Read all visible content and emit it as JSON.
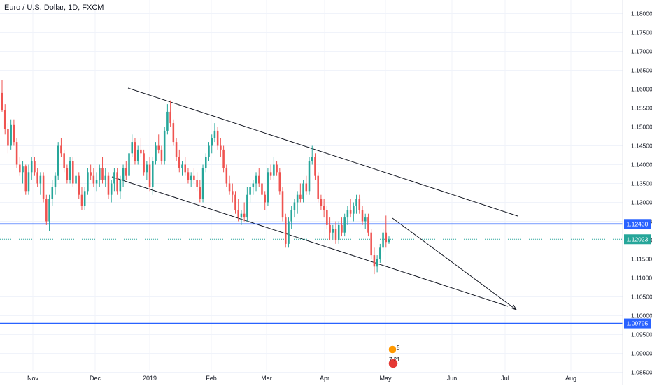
{
  "chart_data": {
    "type": "candlestick",
    "title": "Euro / U.S. Dollar, 1D, FXCM",
    "x_labels": [
      "Nov",
      "Dec",
      "2019",
      "Feb",
      "Mar",
      "Apr",
      "May",
      "Jun",
      "Jul",
      "Aug"
    ],
    "y_ticks": [
      "1.18000",
      "1.17500",
      "1.17000",
      "1.16500",
      "1.16000",
      "1.15500",
      "1.15000",
      "1.14500",
      "1.14000",
      "1.13500",
      "1.13000",
      "1.12500",
      "1.12000",
      "1.11500",
      "1.11000",
      "1.10500",
      "1.10000",
      "1.09500",
      "1.09000",
      "1.08500"
    ],
    "ylim": [
      1.0825,
      1.1825
    ],
    "price_labels": [
      {
        "value": 1.1243,
        "label": "1.12430",
        "color": "#2962ff"
      },
      {
        "value": 1.12023,
        "label": "1.12023",
        "color": "#26a69a"
      },
      {
        "value": 1.09795,
        "label": "1.09795",
        "color": "#2962ff"
      }
    ],
    "candles": [
      [
        1.159,
        1.1625,
        1.154,
        1.1545
      ],
      [
        1.1545,
        1.156,
        1.148,
        1.1495
      ],
      [
        1.1495,
        1.151,
        1.143,
        1.145
      ],
      [
        1.145,
        1.152,
        1.144,
        1.1505
      ],
      [
        1.1505,
        1.152,
        1.145,
        1.146
      ],
      [
        1.146,
        1.147,
        1.139,
        1.14
      ],
      [
        1.14,
        1.142,
        1.137,
        1.138
      ],
      [
        1.138,
        1.141,
        1.135,
        1.1395
      ],
      [
        1.1395,
        1.14,
        1.132,
        1.133
      ],
      [
        1.133,
        1.14,
        1.132,
        1.138
      ],
      [
        1.138,
        1.142,
        1.136,
        1.141
      ],
      [
        1.141,
        1.142,
        1.137,
        1.138
      ],
      [
        1.138,
        1.139,
        1.134,
        1.135
      ],
      [
        1.135,
        1.138,
        1.132,
        1.137
      ],
      [
        1.137,
        1.138,
        1.13,
        1.131
      ],
      [
        1.131,
        1.132,
        1.124,
        1.125
      ],
      [
        1.125,
        1.132,
        1.1225,
        1.131
      ],
      [
        1.131,
        1.136,
        1.129,
        1.134
      ],
      [
        1.134,
        1.138,
        1.132,
        1.137
      ],
      [
        1.137,
        1.146,
        1.136,
        1.145
      ],
      [
        1.145,
        1.147,
        1.142,
        1.143
      ],
      [
        1.143,
        1.144,
        1.138,
        1.139
      ],
      [
        1.139,
        1.14,
        1.135,
        1.136
      ],
      [
        1.136,
        1.142,
        1.135,
        1.141
      ],
      [
        1.141,
        1.142,
        1.134,
        1.135
      ],
      [
        1.135,
        1.138,
        1.133,
        1.137
      ],
      [
        1.137,
        1.138,
        1.131,
        1.132
      ],
      [
        1.132,
        1.134,
        1.128,
        1.129
      ],
      [
        1.129,
        1.134,
        1.128,
        1.133
      ],
      [
        1.133,
        1.139,
        1.132,
        1.138
      ],
      [
        1.138,
        1.14,
        1.136,
        1.137
      ],
      [
        1.137,
        1.139,
        1.134,
        1.135
      ],
      [
        1.135,
        1.138,
        1.133,
        1.136
      ],
      [
        1.136,
        1.14,
        1.134,
        1.139
      ],
      [
        1.139,
        1.142,
        1.135,
        1.136
      ],
      [
        1.136,
        1.139,
        1.134,
        1.137
      ],
      [
        1.137,
        1.138,
        1.131,
        1.132
      ],
      [
        1.132,
        1.136,
        1.13,
        1.135
      ],
      [
        1.135,
        1.139,
        1.133,
        1.138
      ],
      [
        1.138,
        1.139,
        1.132,
        1.133
      ],
      [
        1.133,
        1.137,
        1.131,
        1.136
      ],
      [
        1.136,
        1.14,
        1.134,
        1.139
      ],
      [
        1.139,
        1.141,
        1.136,
        1.137
      ],
      [
        1.137,
        1.144,
        1.136,
        1.143
      ],
      [
        1.143,
        1.148,
        1.142,
        1.146
      ],
      [
        1.146,
        1.147,
        1.14,
        1.141
      ],
      [
        1.141,
        1.145,
        1.14,
        1.144
      ],
      [
        1.144,
        1.147,
        1.142,
        1.143
      ],
      [
        1.143,
        1.144,
        1.137,
        1.138
      ],
      [
        1.138,
        1.141,
        1.136,
        1.14
      ],
      [
        1.14,
        1.142,
        1.133,
        1.134
      ],
      [
        1.134,
        1.142,
        1.132,
        1.141
      ],
      [
        1.141,
        1.146,
        1.14,
        1.145
      ],
      [
        1.145,
        1.148,
        1.143,
        1.144
      ],
      [
        1.144,
        1.145,
        1.14,
        1.141
      ],
      [
        1.141,
        1.15,
        1.14,
        1.149
      ],
      [
        1.149,
        1.156,
        1.148,
        1.154
      ],
      [
        1.154,
        1.157,
        1.15,
        1.151
      ],
      [
        1.151,
        1.152,
        1.145,
        1.146
      ],
      [
        1.146,
        1.147,
        1.141,
        1.142
      ],
      [
        1.142,
        1.144,
        1.138,
        1.139
      ],
      [
        1.139,
        1.141,
        1.137,
        1.14
      ],
      [
        1.14,
        1.142,
        1.137,
        1.138
      ],
      [
        1.138,
        1.139,
        1.135,
        1.136
      ],
      [
        1.136,
        1.138,
        1.134,
        1.137
      ],
      [
        1.137,
        1.139,
        1.135,
        1.136
      ],
      [
        1.136,
        1.138,
        1.133,
        1.134
      ],
      [
        1.134,
        1.136,
        1.13,
        1.131
      ],
      [
        1.131,
        1.14,
        1.13,
        1.139
      ],
      [
        1.139,
        1.143,
        1.138,
        1.142
      ],
      [
        1.142,
        1.146,
        1.141,
        1.145
      ],
      [
        1.145,
        1.148,
        1.143,
        1.147
      ],
      [
        1.147,
        1.151,
        1.146,
        1.149
      ],
      [
        1.149,
        1.15,
        1.144,
        1.145
      ],
      [
        1.145,
        1.147,
        1.142,
        1.144
      ],
      [
        1.144,
        1.145,
        1.138,
        1.139
      ],
      [
        1.139,
        1.14,
        1.134,
        1.135
      ],
      [
        1.135,
        1.137,
        1.132,
        1.133
      ],
      [
        1.133,
        1.135,
        1.13,
        1.132
      ],
      [
        1.132,
        1.133,
        1.127,
        1.128
      ],
      [
        1.128,
        1.131,
        1.125,
        1.126
      ],
      [
        1.126,
        1.128,
        1.124,
        1.127
      ],
      [
        1.127,
        1.13,
        1.125,
        1.126
      ],
      [
        1.126,
        1.134,
        1.125,
        1.132
      ],
      [
        1.132,
        1.135,
        1.13,
        1.134
      ],
      [
        1.134,
        1.136,
        1.132,
        1.135
      ],
      [
        1.135,
        1.138,
        1.133,
        1.137
      ],
      [
        1.137,
        1.139,
        1.134,
        1.135
      ],
      [
        1.135,
        1.136,
        1.131,
        1.132
      ],
      [
        1.132,
        1.133,
        1.128,
        1.13
      ],
      [
        1.13,
        1.139,
        1.129,
        1.138
      ],
      [
        1.138,
        1.14,
        1.136,
        1.137
      ],
      [
        1.137,
        1.142,
        1.136,
        1.14
      ],
      [
        1.14,
        1.141,
        1.137,
        1.138
      ],
      [
        1.138,
        1.139,
        1.132,
        1.133
      ],
      [
        1.133,
        1.134,
        1.125,
        1.126
      ],
      [
        1.126,
        1.127,
        1.118,
        1.119
      ],
      [
        1.119,
        1.126,
        1.118,
        1.125
      ],
      [
        1.125,
        1.129,
        1.123,
        1.128
      ],
      [
        1.128,
        1.131,
        1.126,
        1.13
      ],
      [
        1.13,
        1.133,
        1.127,
        1.132
      ],
      [
        1.132,
        1.135,
        1.13,
        1.131
      ],
      [
        1.131,
        1.136,
        1.13,
        1.135
      ],
      [
        1.135,
        1.137,
        1.132,
        1.133
      ],
      [
        1.133,
        1.142,
        1.132,
        1.141
      ],
      [
        1.141,
        1.145,
        1.14,
        1.142
      ],
      [
        1.142,
        1.143,
        1.136,
        1.137
      ],
      [
        1.137,
        1.138,
        1.13,
        1.131
      ],
      [
        1.131,
        1.132,
        1.128,
        1.129
      ],
      [
        1.129,
        1.131,
        1.126,
        1.128
      ],
      [
        1.128,
        1.129,
        1.123,
        1.124
      ],
      [
        1.124,
        1.126,
        1.12,
        1.122
      ],
      [
        1.122,
        1.124,
        1.12,
        1.123
      ],
      [
        1.123,
        1.125,
        1.119,
        1.12
      ],
      [
        1.12,
        1.125,
        1.119,
        1.124
      ],
      [
        1.124,
        1.126,
        1.121,
        1.122
      ],
      [
        1.122,
        1.127,
        1.121,
        1.126
      ],
      [
        1.126,
        1.129,
        1.124,
        1.128
      ],
      [
        1.128,
        1.131,
        1.126,
        1.127
      ],
      [
        1.127,
        1.13,
        1.125,
        1.129
      ],
      [
        1.129,
        1.132,
        1.127,
        1.131
      ],
      [
        1.131,
        1.132,
        1.127,
        1.128
      ],
      [
        1.128,
        1.129,
        1.124,
        1.125
      ],
      [
        1.125,
        1.127,
        1.123,
        1.126
      ],
      [
        1.126,
        1.127,
        1.121,
        1.122
      ],
      [
        1.122,
        1.123,
        1.115,
        1.116
      ],
      [
        1.116,
        1.118,
        1.111,
        1.113
      ],
      [
        1.113,
        1.116,
        1.1115,
        1.115
      ],
      [
        1.115,
        1.119,
        1.114,
        1.118
      ],
      [
        1.118,
        1.123,
        1.117,
        1.122
      ],
      [
        1.122,
        1.1265,
        1.118,
        1.1195
      ],
      [
        1.1195,
        1.121,
        1.119,
        1.1202
      ]
    ]
  },
  "symbol_title": "Euro / U.S. Dollar, 1D, FXCM",
  "colors": {
    "up": "#26a69a",
    "down": "#ef5350",
    "level": "#2962ff",
    "current": "#26a69a",
    "grid": "#f0f3fa",
    "axis_text": "#131722"
  },
  "footer_badge": {
    "top": "5",
    "bottom": "7 21"
  }
}
